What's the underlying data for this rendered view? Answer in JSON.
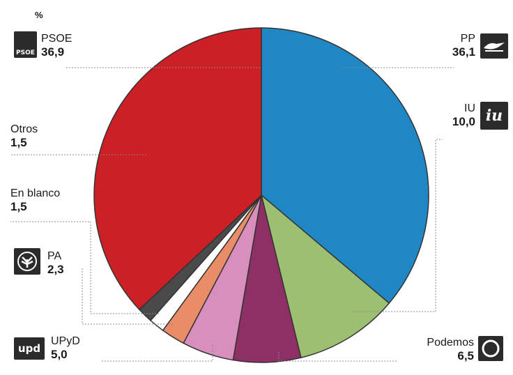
{
  "chart_data": {
    "type": "pie",
    "unit_label": "%",
    "slices": [
      {
        "name": "PP",
        "value": 36.1,
        "display": "36,1",
        "color": "#1f88c4"
      },
      {
        "name": "IU",
        "value": 10.0,
        "display": "10,0",
        "color": "#9cbf72"
      },
      {
        "name": "Podemos",
        "value": 6.5,
        "display": "6,5",
        "color": "#8e2f66"
      },
      {
        "name": "UPyD",
        "value": 5.0,
        "display": "5,0",
        "color": "#d88fbe"
      },
      {
        "name": "PA",
        "value": 2.3,
        "display": "2,3",
        "color": "#e88d68"
      },
      {
        "name": "En blanco",
        "value": 1.5,
        "display": "1,5",
        "color": "#ffffff"
      },
      {
        "name": "Otros",
        "value": 1.5,
        "display": "1,5",
        "color": "#4a4a4a"
      },
      {
        "name": "PSOE",
        "value": 36.9,
        "display": "36,9",
        "color": "#cc1f26"
      }
    ],
    "legend": "labels around pie with leader lines"
  },
  "logos": {
    "psoe": "PSOE",
    "pp": "pp-logo",
    "iu": "iu",
    "pa": "pa-logo",
    "upyd": "upd",
    "podemos": "podemos-circle"
  }
}
